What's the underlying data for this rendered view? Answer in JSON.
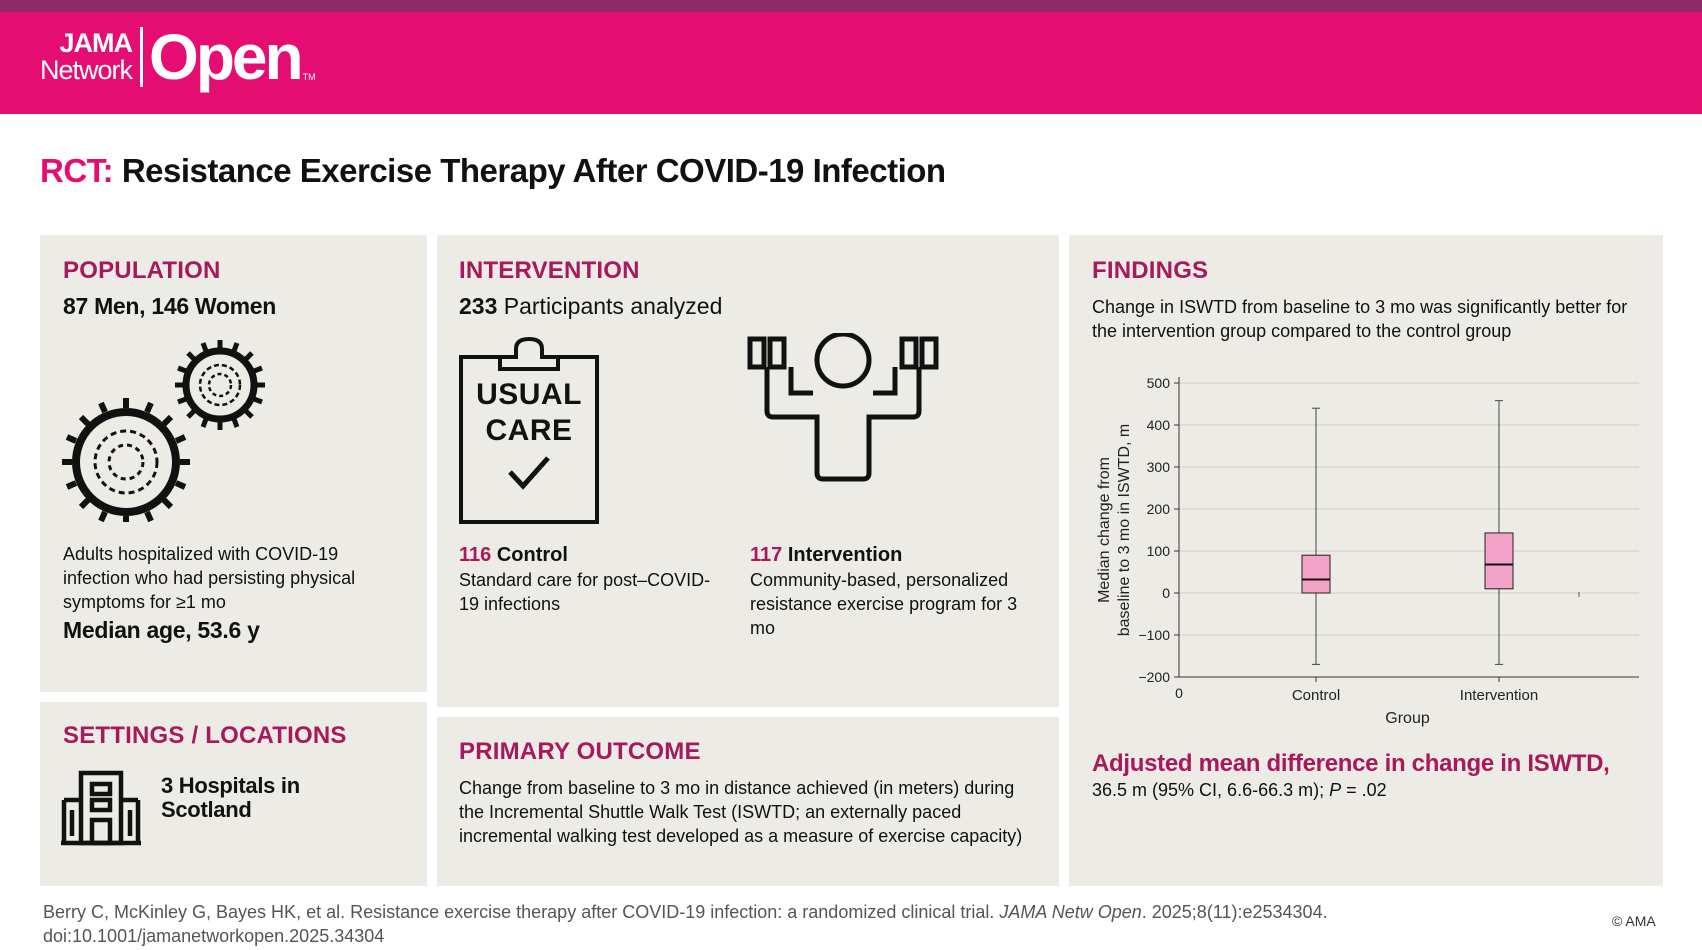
{
  "brand": {
    "line1": "JAMA",
    "line2": "Network",
    "open": "Open",
    "tm": "TM"
  },
  "title": {
    "prefix": "RCT:",
    "main": "Resistance Exercise Therapy After COVID-19 Infection"
  },
  "population": {
    "heading": "POPULATION",
    "counts": "87 Men, 146 Women",
    "description": "Adults hospitalized with COVID-19 infection who had persisting physical symptoms for ≥1 mo",
    "median_age": "Median age, 53.6 y"
  },
  "settings": {
    "heading": "SETTINGS / LOCATIONS",
    "locations": "3 Hospitals in Scotland"
  },
  "intervention": {
    "heading": "INTERVENTION",
    "participants_num": "233",
    "participants_text": "Participants analyzed",
    "usual_care_line1": "USUAL",
    "usual_care_line2": "CARE",
    "control_num": "116",
    "control_label": "Control",
    "control_desc": "Standard care for post–COVID-19 infections",
    "intervention_num": "117",
    "intervention_label": "Intervention",
    "intervention_desc": "Community-based, personalized resistance exercise program for 3 mo"
  },
  "outcome": {
    "heading": "PRIMARY OUTCOME",
    "text": "Change from baseline to 3 mo in distance achieved (in meters) during the Incremental Shuttle Walk Test (ISWTD; an externally paced incremental walking test developed as a measure of exercise capacity)"
  },
  "findings": {
    "heading": "FINDINGS",
    "summary": "Change in ISWTD from baseline to 3 mo was significantly better for the intervention group compared to the control group",
    "adjusted_title": "Adjusted mean difference in change in ISWTD,",
    "adjusted_value": "36.5 m (95% CI, 6.6-66.3 m); ",
    "p_label": "P",
    "p_value": " = .02"
  },
  "chart_data": {
    "type": "box",
    "categories": [
      "Control",
      "Intervention"
    ],
    "xlabel": "Group",
    "x_zero_label": "0",
    "ylabel": "Median change from baseline to 3 mo in ISWTD, m",
    "ylabel_line1": "Median change from",
    "ylabel_line2": "baseline to 3 mo in ISWTD, m",
    "ylim": [
      -200,
      500
    ],
    "yticks": [
      500,
      400,
      300,
      200,
      100,
      0,
      -100,
      -200
    ],
    "grid": true,
    "box_color": "#f4a3c8",
    "boxes": [
      {
        "category": "Control",
        "min": -170,
        "q1": 0,
        "median": 32,
        "q3": 90,
        "max": 440
      },
      {
        "category": "Intervention",
        "min": -170,
        "q1": 10,
        "median": 68,
        "q3": 143,
        "max": 458
      }
    ]
  },
  "citation": {
    "authors_title": "Berry C, McKinley G, Bayes HK, et al. Resistance exercise therapy after COVID-19 infection: a randomized clinical trial. ",
    "journal": "JAMA Netw Open",
    "details": ". 2025;8(11):e2534304.",
    "doi": "doi:10.1001/jamanetworkopen.2025.34304",
    "copyright": "© AMA"
  },
  "colors": {
    "brand_pink": "#e60d72",
    "heading_magenta": "#a8195b",
    "panel_bg": "#ecebe6",
    "top_strip": "#8e2a64"
  }
}
